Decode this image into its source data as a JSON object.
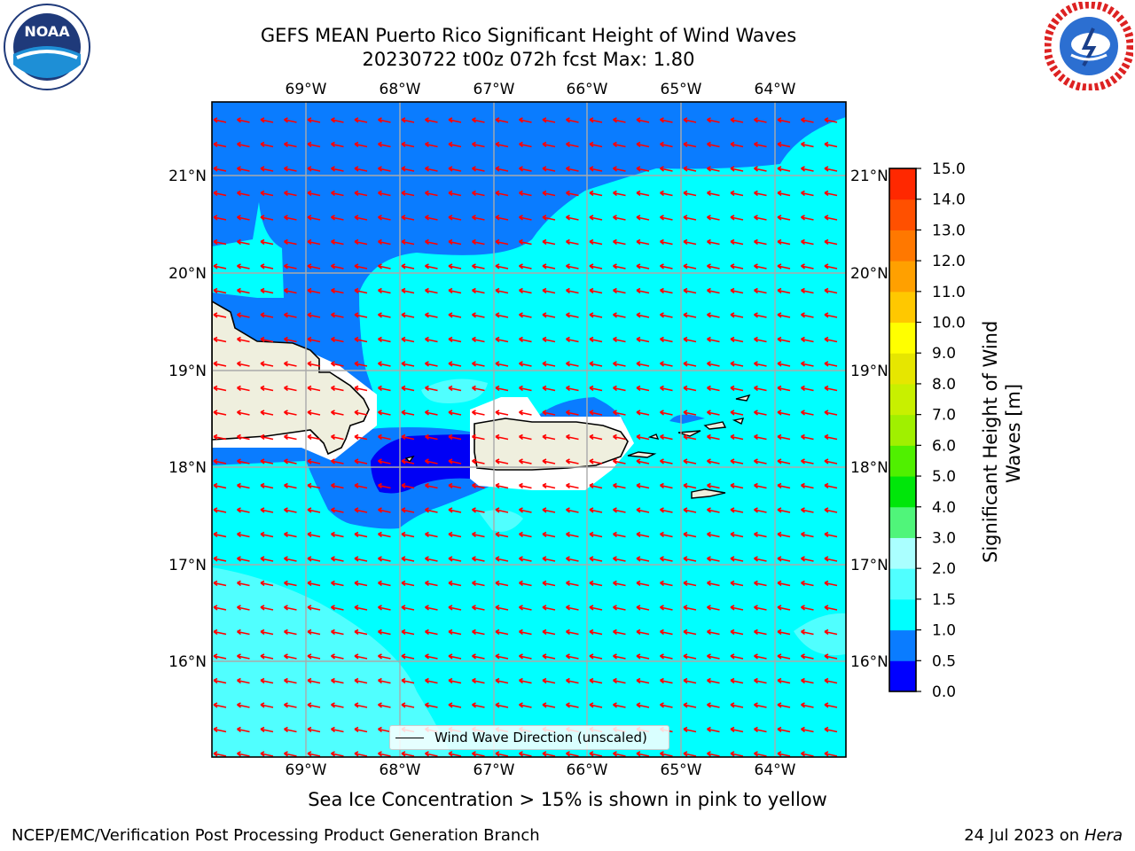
{
  "title_line1": "GEFS MEAN Puerto Rico Significant Height of Wind Waves",
  "title_line2": "20230722 t00z 072h fcst   Max: 1.80",
  "map": {
    "lon_ticks": [
      "69°W",
      "68°W",
      "67°W",
      "66°W",
      "65°W",
      "64°W"
    ],
    "lat_ticks": [
      "21°N",
      "20°N",
      "19°N",
      "18°N",
      "17°N",
      "16°N"
    ],
    "legend_label": "Wind Wave Direction (unscaled)",
    "colors": {
      "ocean_low": "#0000f5",
      "ocean_mid": "#0a7cff",
      "ocean_high": "#00ffff",
      "ocean_higher": "#50ffff",
      "land": "#efefde",
      "arrow": "#ff0000"
    }
  },
  "colorbar": {
    "ticks": [
      "15.0",
      "14.0",
      "13.0",
      "12.0",
      "11.0",
      "10.0",
      "9.0",
      "8.0",
      "7.0",
      "6.0",
      "5.0",
      "4.0",
      "3.0",
      "2.0",
      "1.5",
      "1.0",
      "0.5",
      "0.0"
    ],
    "levels": [
      0.0,
      0.5,
      1.0,
      1.5,
      2.0,
      3.0,
      4.0,
      5.0,
      6.0,
      7.0,
      8.0,
      9.0,
      10.0,
      11.0,
      12.0,
      13.0,
      14.0,
      15.0
    ],
    "colors": [
      "#0000ff",
      "#0a7cff",
      "#00ffff",
      "#50ffff",
      "#aaffff",
      "#50f57a",
      "#00e60a",
      "#50f000",
      "#a0f000",
      "#c8f000",
      "#e6e600",
      "#ffff00",
      "#ffc800",
      "#ffa000",
      "#ff7800",
      "#ff5000",
      "#ff2800",
      "#ff0000"
    ],
    "title_line1": "Significant Height of Wind",
    "title_line2": "Waves [m]"
  },
  "ice_note": "Sea Ice Concentration > 15% is shown in pink to yellow",
  "footer": {
    "credit": "NCEP/EMC/Verification Post Processing Product Generation Branch",
    "date_prefix": "24 Jul 2023 on ",
    "date_machine": "Hera"
  },
  "logos": {
    "left": "noaa-logo",
    "right": "nws-logo",
    "noaa_text": "NOAA"
  }
}
